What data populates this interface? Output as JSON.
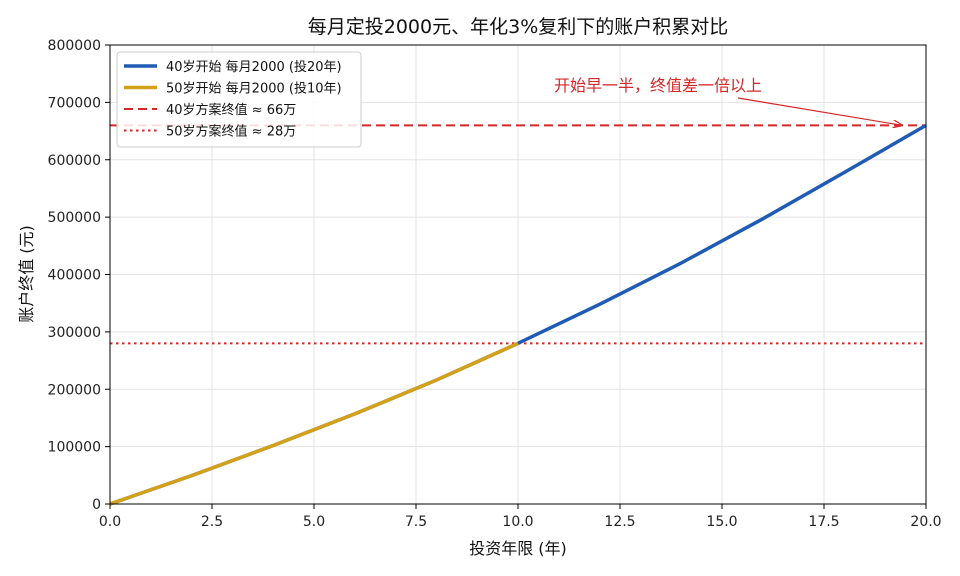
{
  "chart_data": {
    "type": "line",
    "title": "每月定投2000元、年化3%复利下的账户积累对比",
    "xlabel": "投资年限 (年)",
    "ylabel": "账户终值 (元)",
    "xlim": [
      0,
      20
    ],
    "ylim": [
      0,
      800000
    ],
    "xticks": [
      "0.0",
      "2.5",
      "5.0",
      "7.5",
      "10.0",
      "12.5",
      "15.0",
      "17.5",
      "20.0"
    ],
    "xtick_values": [
      0,
      2.5,
      5,
      7.5,
      10,
      12.5,
      15,
      17.5,
      20
    ],
    "yticks": [
      "0",
      "100000",
      "200000",
      "300000",
      "400000",
      "500000",
      "600000",
      "700000",
      "800000"
    ],
    "ytick_values": [
      0,
      100000,
      200000,
      300000,
      400000,
      500000,
      600000,
      700000,
      800000
    ],
    "grid": true,
    "legend_position": "top-left",
    "series": [
      {
        "name": "40岁开始 每月2000 (投20年)",
        "color": "#1f5bb5",
        "style": "solid",
        "x": [
          0,
          2,
          4,
          6,
          8,
          10,
          12,
          14,
          16,
          18,
          20
        ],
        "y": [
          0,
          49500,
          102000,
          157000,
          216000,
          280000,
          348000,
          420000,
          497000,
          578000,
          660000
        ]
      },
      {
        "name": "50岁开始 每月2000 (投10年)",
        "color": "#d4a017",
        "style": "solid",
        "x": [
          0,
          2,
          4,
          6,
          8,
          10
        ],
        "y": [
          0,
          49500,
          102000,
          157000,
          216000,
          280000
        ]
      }
    ],
    "reference_lines": [
      {
        "name": "40岁方案终值 ≈ 66万",
        "y": 660000,
        "color": "#d62728",
        "style": "dashed"
      },
      {
        "name": "50岁方案终值 ≈ 28万",
        "y": 280000,
        "color": "#d62728",
        "style": "dotted"
      }
    ],
    "annotation": {
      "text": "开始早一半，终值差一倍以上",
      "color": "#d62728",
      "point_x": 20,
      "point_y": 660000
    }
  }
}
